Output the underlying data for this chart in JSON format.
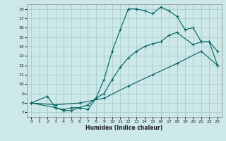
{
  "xlabel": "Humidex (Indice chaleur)",
  "bg_color": "#cce8e8",
  "grid_color": "#aacccc",
  "line_color": "#006060",
  "xlim": [
    -0.5,
    23.5
  ],
  "ylim": [
    6.5,
    18.5
  ],
  "xticks": [
    0,
    1,
    2,
    3,
    4,
    5,
    6,
    7,
    8,
    9,
    10,
    11,
    12,
    13,
    14,
    15,
    16,
    17,
    18,
    19,
    20,
    21,
    22,
    23
  ],
  "yticks": [
    7,
    8,
    9,
    10,
    11,
    12,
    13,
    14,
    15,
    16,
    17,
    18
  ],
  "line1_x": [
    0,
    2,
    3,
    4,
    5,
    6,
    7,
    8,
    9,
    10,
    11,
    12,
    13,
    14,
    15,
    16,
    17,
    18,
    19,
    20,
    21,
    22,
    23
  ],
  "line1_y": [
    8.0,
    8.7,
    7.5,
    7.2,
    7.2,
    7.5,
    7.3,
    8.5,
    10.5,
    13.5,
    15.8,
    18.0,
    18.0,
    17.8,
    17.5,
    18.2,
    17.8,
    17.2,
    15.8,
    16.0,
    14.5,
    14.5,
    13.5
  ],
  "line2_x": [
    0,
    3,
    4,
    5,
    6,
    7,
    8,
    9,
    10,
    11,
    12,
    13,
    14,
    15,
    16,
    17,
    18,
    20,
    21,
    22,
    23
  ],
  "line2_y": [
    8.0,
    7.5,
    7.3,
    7.5,
    7.5,
    7.8,
    8.5,
    9.0,
    10.5,
    11.8,
    12.8,
    13.5,
    14.0,
    14.3,
    14.5,
    15.2,
    15.5,
    14.2,
    14.5,
    14.5,
    12.0
  ],
  "line3_x": [
    0,
    3,
    6,
    9,
    12,
    15,
    18,
    21,
    23
  ],
  "line3_y": [
    8.0,
    7.8,
    8.0,
    8.5,
    9.8,
    11.0,
    12.2,
    13.5,
    12.0
  ]
}
